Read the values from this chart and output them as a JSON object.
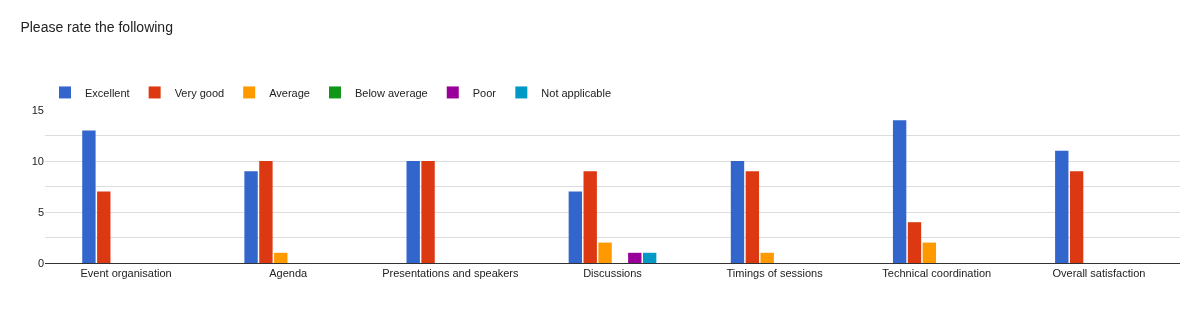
{
  "chart_data": {
    "type": "bar",
    "title": "Please rate the following",
    "categories": [
      "Event organisation",
      "Agenda",
      "Presentations and speakers",
      "Discussions",
      "Timings of sessions",
      "Technical coordination",
      "Overall satisfaction"
    ],
    "series": [
      {
        "name": "Excellent",
        "color": "#3366cc",
        "values": [
          13,
          9,
          10,
          7,
          10,
          14,
          11
        ]
      },
      {
        "name": "Very good",
        "color": "#dc3912",
        "values": [
          7,
          10,
          10,
          9,
          9,
          4,
          9
        ]
      },
      {
        "name": "Average",
        "color": "#ff9900",
        "values": [
          0,
          1,
          0,
          2,
          1,
          2,
          0
        ]
      },
      {
        "name": "Below average",
        "color": "#109618",
        "values": [
          0,
          0,
          0,
          0,
          0,
          0,
          0
        ]
      },
      {
        "name": "Poor",
        "color": "#990099",
        "values": [
          0,
          0,
          0,
          1,
          0,
          0,
          0
        ]
      },
      {
        "name": "Not applicable",
        "color": "#0099c6",
        "values": [
          0,
          0,
          0,
          1,
          0,
          0,
          0
        ]
      }
    ],
    "ylim": [
      0,
      15
    ],
    "yticks": [
      0,
      {
        "value": 2.5,
        "label": null
      },
      5,
      {
        "value": 7.5,
        "label": null
      },
      10,
      {
        "value": 12.5,
        "label": null
      },
      15
    ],
    "grid": "y",
    "legend": "top left"
  }
}
